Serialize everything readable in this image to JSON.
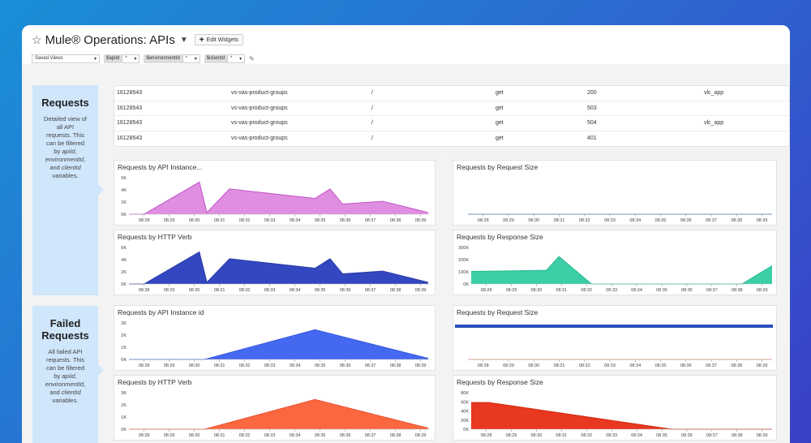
{
  "header": {
    "title": "Mule® Operations: APIs",
    "edit_widgets_label": "Edit Widgets",
    "saved_views": "Saved Views",
    "filters": [
      {
        "tag": "$apiId",
        "value": "*"
      },
      {
        "tag": "$environmentId",
        "value": "*"
      },
      {
        "tag": "$clientId",
        "value": "*"
      }
    ]
  },
  "sections": [
    {
      "title": "Requests",
      "desc_1": "Detailed view of all API requests. This can be filtered by ",
      "desc_apiid": "apiId",
      "desc_comma": ",",
      "desc_envid": "environmentId",
      "desc_and": ", and ",
      "desc_clientid": "clientId",
      "desc_end": " variables."
    },
    {
      "title": "Failed Requests",
      "desc_1": "All failed API requests. This can be filtered by ",
      "desc_apiid": "apiId",
      "desc_comma": ",",
      "desc_envid": "environmentId",
      "desc_and": ", and ",
      "desc_clientid": "clientId",
      "desc_end": " variables."
    }
  ],
  "table": {
    "rows": [
      [
        "16128543",
        "vs-vas-product-groups",
        "/",
        "get",
        "200",
        "vlc_app"
      ],
      [
        "16128543",
        "vs-vas-product-groups",
        "/",
        "get",
        "503",
        ""
      ],
      [
        "16128543",
        "vs-vas-product-groups",
        "/",
        "get",
        "504",
        "vlc_app"
      ],
      [
        "16128543",
        "vs-vas-product-groups",
        "/",
        "get",
        "401",
        ""
      ]
    ]
  },
  "times": [
    "08:28",
    "08:29",
    "08:30",
    "08:31",
    "08:32",
    "08:33",
    "08:34",
    "08:35",
    "08:36",
    "08:37",
    "08:38",
    "08:39"
  ],
  "chart_data": [
    {
      "type": "area",
      "title": "Requests by API Instance...",
      "color": "#e08ee0",
      "stroke": "#c050c8",
      "y_ticks": [
        "6K",
        "4K",
        "2K",
        "0K"
      ],
      "ylim": [
        0,
        6500
      ],
      "points": [
        [
          0,
          0
        ],
        [
          0.6,
          0
        ],
        [
          2.8,
          5700
        ],
        [
          3.1,
          300
        ],
        [
          4.0,
          4500
        ],
        [
          7.4,
          2800
        ],
        [
          8.0,
          4500
        ],
        [
          8.5,
          1800
        ],
        [
          10.1,
          2300
        ],
        [
          11.9,
          300
        ]
      ]
    },
    {
      "type": "line",
      "title": "Requests by Request Size",
      "color": "#2a6fb0",
      "stroke": "#2a6fb0",
      "y_ticks": [],
      "ylim": [
        0,
        100
      ],
      "points": [
        [
          0,
          1
        ],
        [
          12,
          1
        ]
      ]
    },
    {
      "type": "area",
      "title": "Requests by HTTP Verb",
      "color": "#3347c0",
      "stroke": "#2a3aa8",
      "y_ticks": [
        "6K",
        "4K",
        "2K",
        "0K"
      ],
      "ylim": [
        0,
        6500
      ],
      "points": [
        [
          0,
          0
        ],
        [
          0.6,
          0
        ],
        [
          2.8,
          5700
        ],
        [
          3.1,
          300
        ],
        [
          4.0,
          4500
        ],
        [
          7.4,
          2800
        ],
        [
          8.0,
          4500
        ],
        [
          8.5,
          1800
        ],
        [
          10.1,
          2300
        ],
        [
          11.9,
          300
        ]
      ]
    },
    {
      "type": "area",
      "title": "Requests by Response Size",
      "color": "#3ccfa7",
      "stroke": "#2ab890",
      "y_ticks": [
        "300K",
        "200K",
        "100K",
        "0K"
      ],
      "ylim": [
        0,
        320000
      ],
      "points": [
        [
          0,
          110000
        ],
        [
          3.0,
          120000
        ],
        [
          3.5,
          240000
        ],
        [
          4.8,
          0
        ],
        [
          10.8,
          0
        ],
        [
          12.0,
          160000
        ]
      ]
    },
    {
      "type": "area",
      "title": "Requests by API Instance id",
      "color": "#4568f0",
      "stroke": "#3558e0",
      "y_ticks": [
        "3K",
        "2K",
        "1K",
        "0K"
      ],
      "ylim": [
        0,
        3200
      ],
      "points": [
        [
          0,
          0
        ],
        [
          3.0,
          0
        ],
        [
          7.4,
          2600
        ],
        [
          11.9,
          100
        ]
      ]
    },
    {
      "type": "band",
      "title": "Requests by Request Size",
      "color": "#2a4fc0",
      "stroke": "#e88060",
      "y_ticks": [],
      "ylim": [
        0,
        100
      ],
      "points": [
        [
          0,
          0
        ],
        [
          12,
          0
        ]
      ]
    },
    {
      "type": "area",
      "title": "Requests by HTTP Verb",
      "color": "#fb6840",
      "stroke": "#e85030",
      "y_ticks": [
        "3K",
        "2K",
        "1K",
        "0K"
      ],
      "ylim": [
        0,
        3200
      ],
      "points": [
        [
          0,
          0
        ],
        [
          3.0,
          0
        ],
        [
          7.4,
          2600
        ],
        [
          11.9,
          100
        ]
      ]
    },
    {
      "type": "area",
      "title": "Requests by Response Size",
      "color": "#e83820",
      "stroke": "#d02810",
      "y_ticks": [
        "80K",
        "60K",
        "40K",
        "20K",
        "0K"
      ],
      "ylim": [
        0,
        82000
      ],
      "points": [
        [
          0,
          60000
        ],
        [
          0.7,
          60000
        ],
        [
          8.0,
          0
        ],
        [
          12,
          0
        ]
      ]
    }
  ]
}
